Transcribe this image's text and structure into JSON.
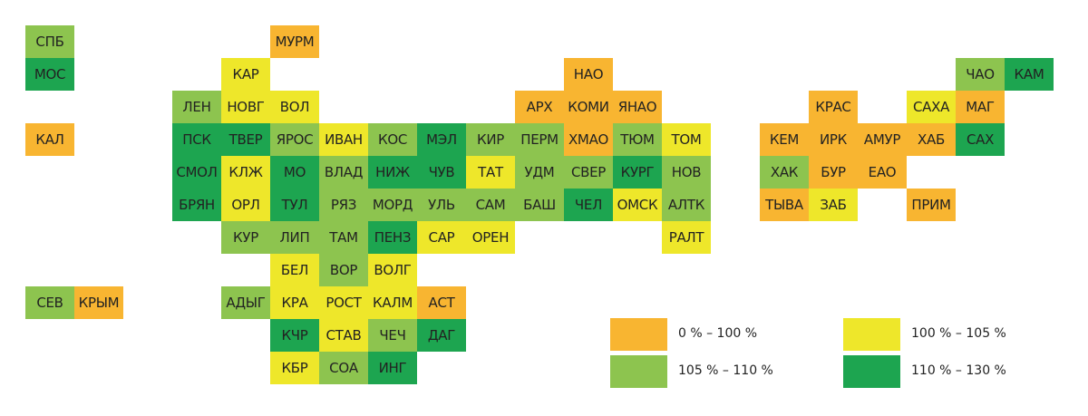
{
  "colors": {
    "0": "#f8b531",
    "1": "#eee72a",
    "2": "#8dc44f",
    "3": "#1da550"
  },
  "legend": [
    {
      "label": "0 % – 100 %",
      "cls": 0
    },
    {
      "label": "100 % – 105 %",
      "cls": 1
    },
    {
      "label": "105 % – 110 %",
      "cls": 2
    },
    {
      "label": "110 % – 130 %",
      "cls": 3
    }
  ],
  "regions": [
    {
      "name": "СПБ",
      "col": 0,
      "row": 0,
      "cls": 2
    },
    {
      "name": "МУРМ",
      "col": 5,
      "row": 0,
      "cls": 0
    },
    {
      "name": "МОС",
      "col": 0,
      "row": 1,
      "cls": 3
    },
    {
      "name": "КАР",
      "col": 4,
      "row": 1,
      "cls": 1
    },
    {
      "name": "НАО",
      "col": 11,
      "row": 1,
      "cls": 0
    },
    {
      "name": "ЧАО",
      "col": 19,
      "row": 1,
      "cls": 2
    },
    {
      "name": "КАМ",
      "col": 20,
      "row": 1,
      "cls": 3
    },
    {
      "name": "ЛЕН",
      "col": 3,
      "row": 2,
      "cls": 2
    },
    {
      "name": "НОВГ",
      "col": 4,
      "row": 2,
      "cls": 1
    },
    {
      "name": "ВОЛ",
      "col": 5,
      "row": 2,
      "cls": 1
    },
    {
      "name": "АРХ",
      "col": 10,
      "row": 2,
      "cls": 0
    },
    {
      "name": "КОМИ",
      "col": 11,
      "row": 2,
      "cls": 0
    },
    {
      "name": "ЯНАО",
      "col": 12,
      "row": 2,
      "cls": 0
    },
    {
      "name": "КРАС",
      "col": 16,
      "row": 2,
      "cls": 0
    },
    {
      "name": "САХА",
      "col": 18,
      "row": 2,
      "cls": 1
    },
    {
      "name": "МАГ",
      "col": 19,
      "row": 2,
      "cls": 0
    },
    {
      "name": "КАЛ",
      "col": 0,
      "row": 3,
      "cls": 0
    },
    {
      "name": "ПСК",
      "col": 3,
      "row": 3,
      "cls": 3
    },
    {
      "name": "ТВЕР",
      "col": 4,
      "row": 3,
      "cls": 3
    },
    {
      "name": "ЯРОС",
      "col": 5,
      "row": 3,
      "cls": 2
    },
    {
      "name": "ИВАН",
      "col": 6,
      "row": 3,
      "cls": 1
    },
    {
      "name": "КОС",
      "col": 7,
      "row": 3,
      "cls": 2
    },
    {
      "name": "МЭЛ",
      "col": 8,
      "row": 3,
      "cls": 3
    },
    {
      "name": "КИР",
      "col": 9,
      "row": 3,
      "cls": 2
    },
    {
      "name": "ПЕРМ",
      "col": 10,
      "row": 3,
      "cls": 2
    },
    {
      "name": "ХМАО",
      "col": 11,
      "row": 3,
      "cls": 0
    },
    {
      "name": "ТЮМ",
      "col": 12,
      "row": 3,
      "cls": 2
    },
    {
      "name": "ТОМ",
      "col": 13,
      "row": 3,
      "cls": 1
    },
    {
      "name": "КЕМ",
      "col": 14,
      "row": 3,
      "cls": 0
    },
    {
      "name": "ИРК",
      "col": 15,
      "row": 3,
      "cls": 0
    },
    {
      "name": "АМУР",
      "col": 16,
      "row": 3,
      "cls": 0
    },
    {
      "name": "ХАБ",
      "col": 17,
      "row": 3,
      "cls": 0
    },
    {
      "name": "САХ",
      "col": 18,
      "row": 3,
      "cls": 3
    },
    {
      "name": "СМОЛ",
      "col": 3,
      "row": 4,
      "cls": 3
    },
    {
      "name": "КЛЖ",
      "col": 4,
      "row": 4,
      "cls": 1
    },
    {
      "name": "МО",
      "col": 5,
      "row": 4,
      "cls": 3
    },
    {
      "name": "ВЛАД",
      "col": 6,
      "row": 4,
      "cls": 2
    },
    {
      "name": "НИЖ",
      "col": 7,
      "row": 4,
      "cls": 3
    },
    {
      "name": "ЧУВ",
      "col": 8,
      "row": 4,
      "cls": 3
    },
    {
      "name": "ТАТ",
      "col": 9,
      "row": 4,
      "cls": 1
    },
    {
      "name": "УДМ",
      "col": 10,
      "row": 4,
      "cls": 2
    },
    {
      "name": "СВЕР",
      "col": 11,
      "row": 4,
      "cls": 2
    },
    {
      "name": "КУРГ",
      "col": 12,
      "row": 4,
      "cls": 3
    },
    {
      "name": "НОВ",
      "col": 13,
      "row": 4,
      "cls": 2
    },
    {
      "name": "ХАК",
      "col": 14,
      "row": 4,
      "cls": 2
    },
    {
      "name": "БУР",
      "col": 15,
      "row": 4,
      "cls": 0
    },
    {
      "name": "ЕАО",
      "col": 16,
      "row": 4,
      "cls": 0
    },
    {
      "name": "БРЯН",
      "col": 3,
      "row": 5,
      "cls": 3
    },
    {
      "name": "ОРЛ",
      "col": 4,
      "row": 5,
      "cls": 1
    },
    {
      "name": "ТУЛ",
      "col": 5,
      "row": 5,
      "cls": 3
    },
    {
      "name": "РЯЗ",
      "col": 6,
      "row": 5,
      "cls": 2
    },
    {
      "name": "МОРД",
      "col": 7,
      "row": 5,
      "cls": 2
    },
    {
      "name": "УЛЬ",
      "col": 8,
      "row": 5,
      "cls": 2
    },
    {
      "name": "САМ",
      "col": 9,
      "row": 5,
      "cls": 2
    },
    {
      "name": "БАШ",
      "col": 10,
      "row": 5,
      "cls": 2
    },
    {
      "name": "ЧЕЛ",
      "col": 11,
      "row": 5,
      "cls": 3
    },
    {
      "name": "ОМСК",
      "col": 12,
      "row": 5,
      "cls": 1
    },
    {
      "name": "АЛТК",
      "col": 13,
      "row": 5,
      "cls": 2
    },
    {
      "name": "ТЫВА",
      "col": 14,
      "row": 5,
      "cls": 0
    },
    {
      "name": "ЗАБ",
      "col": 15,
      "row": 5,
      "cls": 1
    },
    {
      "name": "ПРИМ",
      "col": 17,
      "row": 5,
      "cls": 0
    },
    {
      "name": "КУР",
      "col": 4,
      "row": 6,
      "cls": 2
    },
    {
      "name": "ЛИП",
      "col": 5,
      "row": 6,
      "cls": 2
    },
    {
      "name": "ТАМ",
      "col": 6,
      "row": 6,
      "cls": 2
    },
    {
      "name": "ПЕНЗ",
      "col": 7,
      "row": 6,
      "cls": 3
    },
    {
      "name": "САР",
      "col": 8,
      "row": 6,
      "cls": 1
    },
    {
      "name": "ОРЕН",
      "col": 9,
      "row": 6,
      "cls": 1
    },
    {
      "name": "РАЛТ",
      "col": 13,
      "row": 6,
      "cls": 1
    },
    {
      "name": "БЕЛ",
      "col": 5,
      "row": 7,
      "cls": 1
    },
    {
      "name": "ВОР",
      "col": 6,
      "row": 7,
      "cls": 2
    },
    {
      "name": "ВОЛГ",
      "col": 7,
      "row": 7,
      "cls": 1
    },
    {
      "name": "СЕВ",
      "col": 0,
      "row": 8,
      "cls": 2
    },
    {
      "name": "КРЫМ",
      "col": 1,
      "row": 8,
      "cls": 0
    },
    {
      "name": "АДЫГ",
      "col": 4,
      "row": 8,
      "cls": 2
    },
    {
      "name": "КРА",
      "col": 5,
      "row": 8,
      "cls": 1
    },
    {
      "name": "РОСТ",
      "col": 6,
      "row": 8,
      "cls": 1
    },
    {
      "name": "КАЛМ",
      "col": 7,
      "row": 8,
      "cls": 1
    },
    {
      "name": "АСТ",
      "col": 8,
      "row": 8,
      "cls": 0
    },
    {
      "name": "КЧР",
      "col": 5,
      "row": 9,
      "cls": 3
    },
    {
      "name": "СТАВ",
      "col": 6,
      "row": 9,
      "cls": 1
    },
    {
      "name": "ЧЕЧ",
      "col": 7,
      "row": 9,
      "cls": 2
    },
    {
      "name": "ДАГ",
      "col": 8,
      "row": 9,
      "cls": 3
    },
    {
      "name": "КБР",
      "col": 5,
      "row": 10,
      "cls": 1
    },
    {
      "name": "СОА",
      "col": 6,
      "row": 10,
      "cls": 2
    },
    {
      "name": "ИНГ",
      "col": 7,
      "row": 10,
      "cls": 3
    }
  ]
}
